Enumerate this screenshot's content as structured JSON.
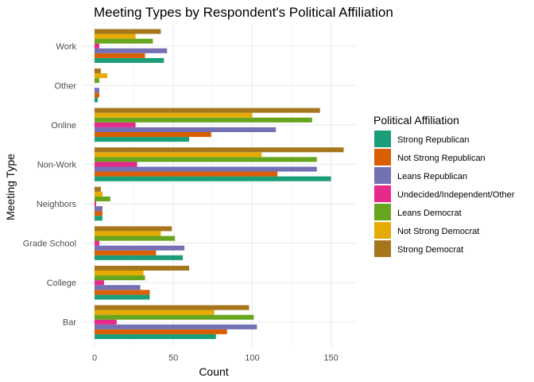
{
  "chart_data": {
    "type": "bar",
    "orientation": "horizontal",
    "title": "Meeting Types by Respondent's Political Affiliation",
    "xlabel": "Count",
    "ylabel": "Meeting Type",
    "xlim": [
      0,
      165
    ],
    "x_ticks": [
      0,
      50,
      100,
      150
    ],
    "grid": true,
    "legend_position": "right",
    "legend_title": "Political Affiliation",
    "categories": [
      "Work",
      "Other",
      "Online",
      "Non-Work",
      "Neighbors",
      "Grade School",
      "College",
      "Bar"
    ],
    "series": [
      {
        "name": "Strong Republican",
        "color": "#1b9e77",
        "values": [
          44,
          2,
          60,
          150,
          5,
          56,
          35,
          77
        ]
      },
      {
        "name": "Not Strong Republican",
        "color": "#d95f02",
        "values": [
          32,
          3,
          74,
          116,
          5,
          39,
          35,
          84
        ]
      },
      {
        "name": "Leans Republican",
        "color": "#7570b3",
        "values": [
          46,
          3,
          115,
          141,
          5,
          57,
          29,
          103
        ]
      },
      {
        "name": "Undecided/Independent/Other",
        "color": "#e7298a",
        "values": [
          3,
          0,
          26,
          27,
          1,
          3,
          6,
          14
        ]
      },
      {
        "name": "Leans Democrat",
        "color": "#66a61e",
        "values": [
          37,
          3,
          138,
          141,
          10,
          51,
          32,
          101
        ]
      },
      {
        "name": "Not Strong Democrat",
        "color": "#e6ab02",
        "values": [
          26,
          8,
          100,
          106,
          5,
          42,
          31,
          76
        ]
      },
      {
        "name": "Strong Democrat",
        "color": "#a6761d",
        "values": [
          42,
          4,
          143,
          158,
          4,
          49,
          60,
          98
        ]
      }
    ]
  }
}
